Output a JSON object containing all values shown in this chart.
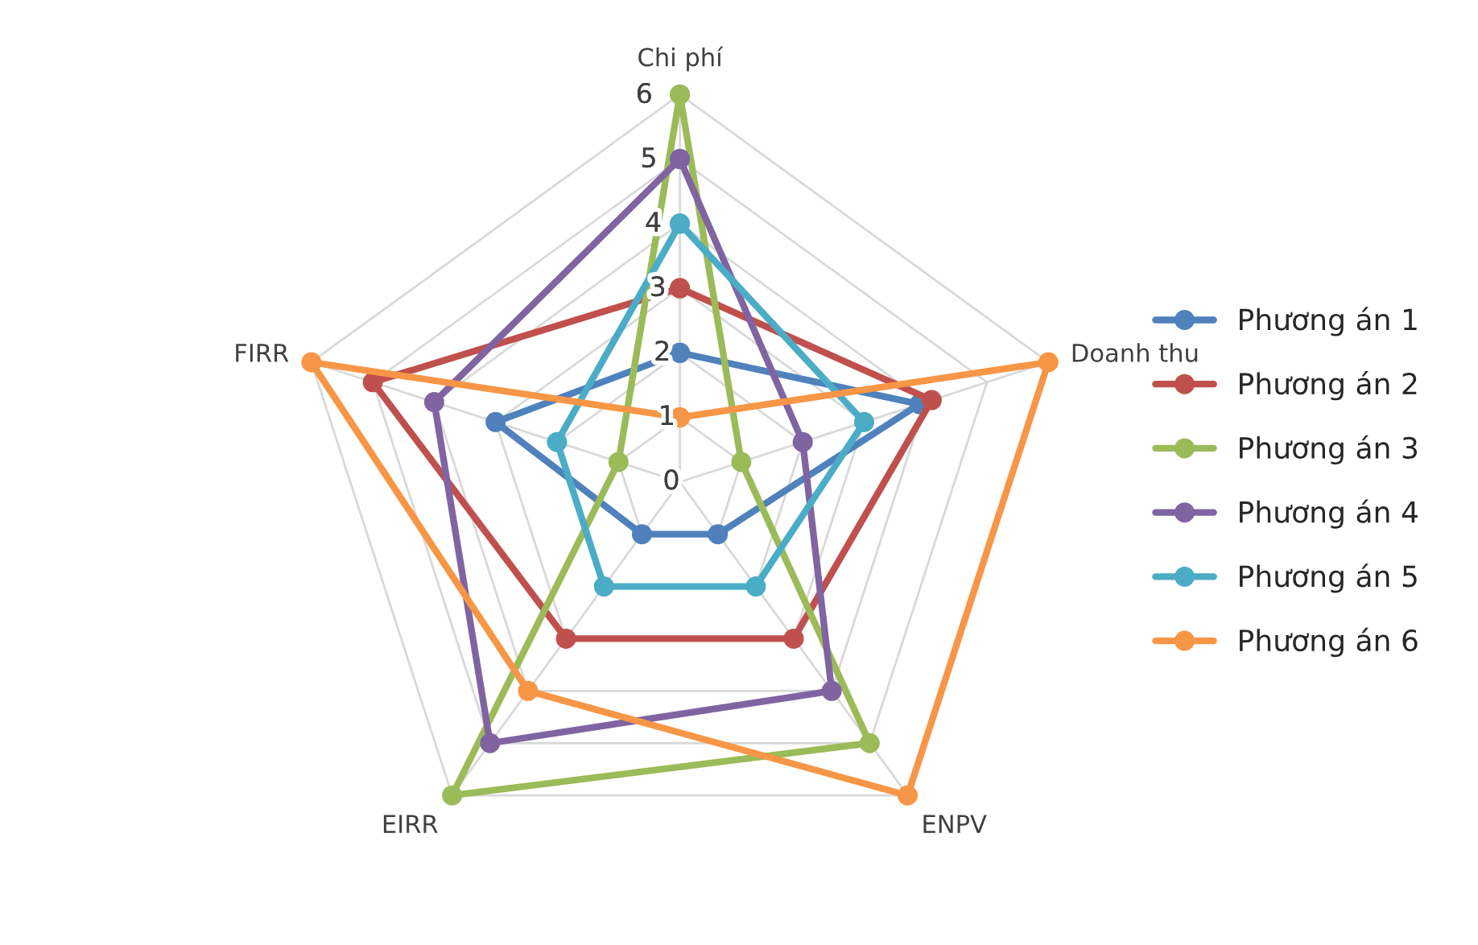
{
  "chart_data": {
    "type": "radar",
    "categories": [
      "Chi phí",
      "Doanh thu",
      "ENPV",
      "EIRR",
      "FIRR"
    ],
    "series": [
      {
        "name": "Phương án 1",
        "color": "#4f81bd",
        "values": [
          2,
          3.9,
          1,
          1,
          3
        ]
      },
      {
        "name": "Phương án 2",
        "color": "#c0504d",
        "values": [
          3,
          4.1,
          3,
          3,
          5
        ]
      },
      {
        "name": "Phương án 3",
        "color": "#9bbb59",
        "values": [
          6,
          1,
          5,
          6,
          1
        ]
      },
      {
        "name": "Phương án 4",
        "color": "#8064a2",
        "values": [
          5,
          2,
          4,
          5,
          4
        ]
      },
      {
        "name": "Phương án 5",
        "color": "#4bacc6",
        "values": [
          4,
          3,
          2,
          2,
          2
        ]
      },
      {
        "name": "Phương án 6",
        "color": "#f79646",
        "values": [
          1,
          6,
          6,
          4,
          6
        ]
      }
    ],
    "ylim": [
      0,
      6
    ],
    "yticks": [
      0,
      1,
      2,
      3,
      4,
      5,
      6
    ],
    "grid": true,
    "legend": "right",
    "marker": "circle",
    "line_style": "solid"
  }
}
